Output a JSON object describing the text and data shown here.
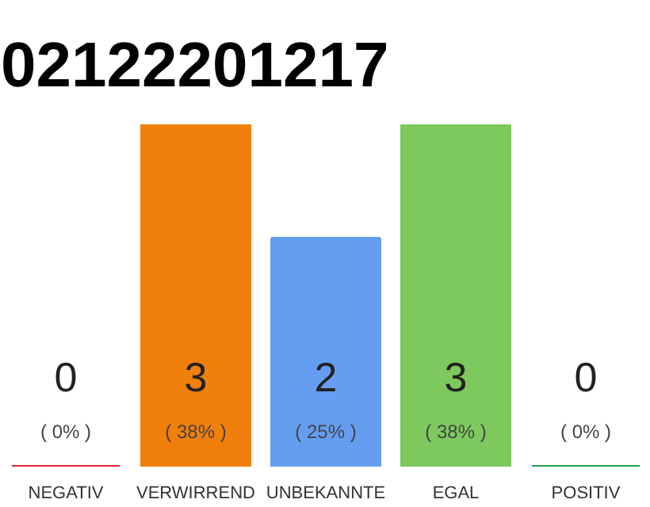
{
  "chart_data": {
    "type": "bar",
    "title": "02122201217",
    "categories": [
      "NEGATIV",
      "VERWIRREND",
      "UNBEKANNTE",
      "EGAL",
      "POSITIV"
    ],
    "values": [
      0,
      3,
      2,
      3,
      0
    ],
    "colors": [
      "#e8233a",
      "#f07f0c",
      "#659ef0",
      "#7dc95e",
      "#23a047"
    ],
    "value_labels": [
      "0\n( 0% )",
      "3\n( 38% )",
      "2\n( 25% )",
      "3\n( 38% )",
      "0\n( 0% )"
    ],
    "grid": false
  }
}
